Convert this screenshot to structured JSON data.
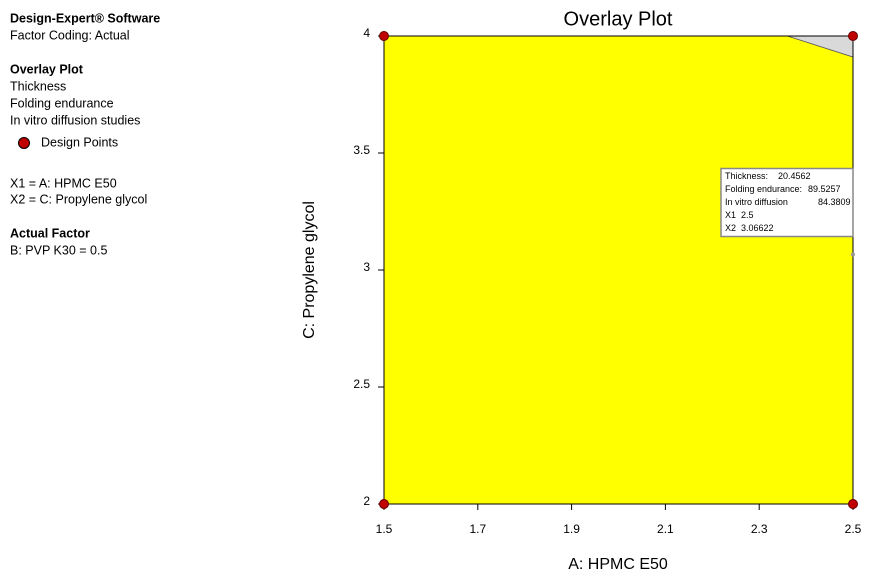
{
  "sidebar": {
    "software": "Design-Expert® Software",
    "coding": "Factor Coding: Actual",
    "plot_heading": "Overlay Plot",
    "responses": [
      "Thickness",
      "Folding endurance",
      "In vitro diffusion studies"
    ],
    "factors": [
      "X1 = A: HPMC E50",
      "X2 = C: Propylene glycol"
    ],
    "actual_heading": "Actual Factor",
    "actual": "B: PVP K30 = 0.5"
  },
  "chart_data": {
    "type": "overlay",
    "title": "Overlay Plot",
    "x_label": "A: HPMC E50",
    "y_label": "C: Propylene glycol",
    "xlim": [
      1.5,
      2.5
    ],
    "ylim": [
      2,
      4
    ],
    "xticks": [
      1.5,
      1.7,
      1.9,
      2.1,
      2.3,
      2.5
    ],
    "yticks": [
      2,
      2.5,
      3,
      3.5,
      4
    ],
    "region_color": "#ffff00",
    "excluded_region": {
      "color": "#d9d9d9",
      "x": [
        2.36,
        2.5,
        2.5
      ],
      "y": [
        4,
        4,
        3.91
      ]
    },
    "series": [
      {
        "name": "Design Points",
        "color": "#c00000",
        "x": [
          1.5,
          1.5,
          2.5,
          2.5
        ],
        "y": [
          2,
          4,
          2,
          4
        ]
      }
    ],
    "flag": {
      "x": 2.5,
      "y": 3.06622,
      "x_name": "X1",
      "y_name": "X2",
      "names": [
        "Thickness:",
        "Folding endurance:",
        "In vitro diffusion"
      ],
      "values": [
        20.4562,
        89.5257,
        84.3809
      ]
    }
  }
}
